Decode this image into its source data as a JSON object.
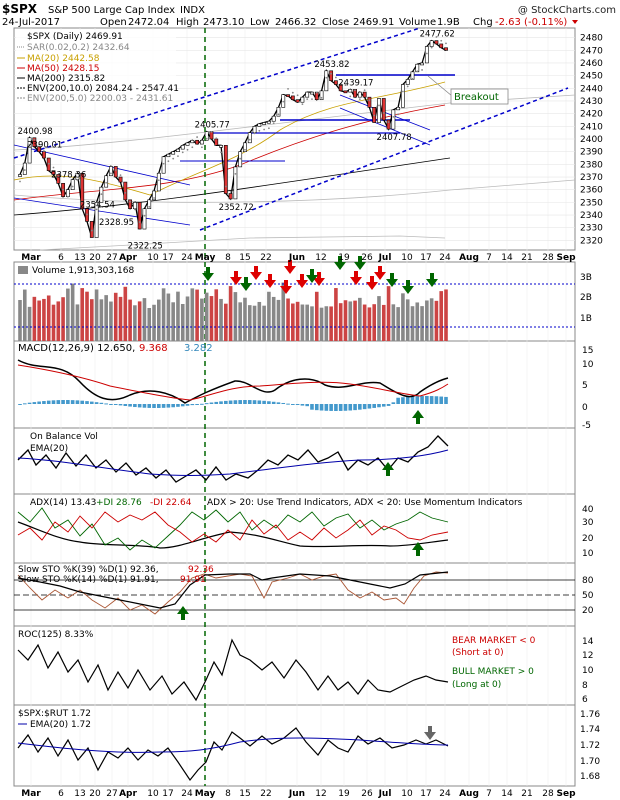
{
  "header": {
    "symbol": "$SPX",
    "name": "S&P 500 Large Cap Index",
    "exchange": "INDX",
    "watermark": "@ StockCharts.com",
    "date": "24-Jul-2017",
    "open_label": "Open",
    "open": "2472.04",
    "high_label": "High",
    "high": "2473.10",
    "low_label": "Low",
    "low": "2466.32",
    "close_label": "Close",
    "close": "2469.91",
    "volume_label": "Volume",
    "volume": "1.9B",
    "chg_label": "Chg",
    "chg": "-2.63 (-0.11%)"
  },
  "main_legend": [
    {
      "text": "$SPX (Daily) 2469.91",
      "color": "#000000"
    },
    {
      "text": "SAR(0.02,0.2) 2432.64",
      "color": "#888888"
    },
    {
      "text": "MA(20) 2442.58",
      "color": "#c8a000"
    },
    {
      "text": "MA(50) 2428.15",
      "color": "#cc0000"
    },
    {
      "text": "MA(200) 2315.82",
      "color": "#000000"
    },
    {
      "text": "ENV(200,10.0) 2084.24 - 2547.41",
      "color": "#000000"
    },
    {
      "text": "ENV(200,5.0) 2200.03 - 2431.61",
      "color": "#888888"
    }
  ],
  "annotations": {
    "breakout": "Breakout",
    "price_labels": [
      "2400.98",
      "2390.01",
      "2378.36",
      "2354.54",
      "2322.25",
      "2328.95",
      "2405.77",
      "2352.72",
      "2453.82",
      "2439.17",
      "2407.78",
      "2477.62"
    ]
  },
  "x_axis": {
    "labels": [
      "Mar",
      "6",
      "13",
      "20",
      "27",
      "Apr",
      "10",
      "17",
      "24",
      "May",
      "8",
      "15",
      "22",
      "Jun",
      "12",
      "19",
      "26",
      "Jul",
      "10",
      "17",
      "24",
      "Aug",
      "7",
      "14",
      "21",
      "28",
      "Sep"
    ]
  },
  "panels": {
    "volume": {
      "title": "Volume 1,913,303,168",
      "ticks": [
        "3B",
        "2B",
        "1B"
      ]
    },
    "macd": {
      "title": "MACD(12,26,9) 12.650,",
      "v2": "9.368",
      "v3": "3.282",
      "ticks": [
        "15",
        "10",
        "5",
        "0",
        "-5"
      ]
    },
    "obv": {
      "title": "On Balance Vol",
      "ema": "EMA(20)"
    },
    "adx": {
      "title": "ADX(14) 13.43",
      "pdi": "+DI 28.76",
      "mdi": "-DI 22.64",
      "note": "ADX > 20: Use Trend Indicators, ADX < 20: Use Momentum Indicators",
      "ticks": [
        "40",
        "30",
        "20",
        "10"
      ]
    },
    "sto": {
      "title1": "Slow STO %K(39) %D(1) 92.36,",
      "title1b": "92.36",
      "title2": "Slow STO %K(14) %D(1) 91.91,",
      "title2b": "91.91",
      "ticks": [
        "80",
        "50",
        "20"
      ]
    },
    "roc": {
      "title": "ROC(125) 8.33%",
      "bear": "BEAR MARKET < 0",
      "bear_sub": "(Short at 0)",
      "bull": "BULL MARKET > 0",
      "bull_sub": "(Long at 0)",
      "ticks": [
        "14",
        "12",
        "10",
        "8",
        "6"
      ]
    },
    "ratio": {
      "title": "$SPX:$RUT 1.72",
      "ema": "EMA(20) 1.72",
      "ticks": [
        "1.76",
        "1.74",
        "1.72",
        "1.70",
        "1.68"
      ]
    }
  },
  "chart_data": {
    "type": "line",
    "title": "$SPX S&P 500 Large Cap Index INDX",
    "xlabel": "",
    "ylabel": "",
    "y_ticks": [
      2480,
      2470,
      2460,
      2450,
      2440,
      2430,
      2420,
      2410,
      2400,
      2390,
      2380,
      2370,
      2360,
      2350,
      2340,
      2330,
      2320
    ],
    "ylim": [
      2314,
      2486
    ],
    "series": [
      {
        "name": "$SPX (Daily)",
        "values": [
          2372,
          2381,
          2400.98,
          2394,
          2390.01,
          2385,
          2375,
          2372,
          2365,
          2354.54,
          2360,
          2368,
          2373,
          2345,
          2335,
          2322.25,
          2350,
          2362,
          2371,
          2378.36,
          2370,
          2366,
          2352,
          2345,
          2350,
          2328.95,
          2345,
          2352,
          2359,
          2373,
          2386,
          2388,
          2390,
          2392,
          2395,
          2397,
          2399,
          2396,
          2399,
          2405.77,
          2400,
          2395,
          2395,
          2357,
          2352.72,
          2378,
          2390,
          2397,
          2405,
          2410,
          2412,
          2413,
          2414,
          2418,
          2425,
          2435,
          2434,
          2431,
          2429,
          2433,
          2437,
          2437,
          2431,
          2438,
          2453.82,
          2446,
          2443,
          2438,
          2437,
          2439.17,
          2433,
          2437,
          2433,
          2425,
          2413,
          2432,
          2415,
          2407.78,
          2423,
          2425,
          2443,
          2447,
          2453,
          2459,
          2460,
          2473,
          2477.62,
          2475,
          2472,
          2469.91
        ]
      }
    ]
  }
}
